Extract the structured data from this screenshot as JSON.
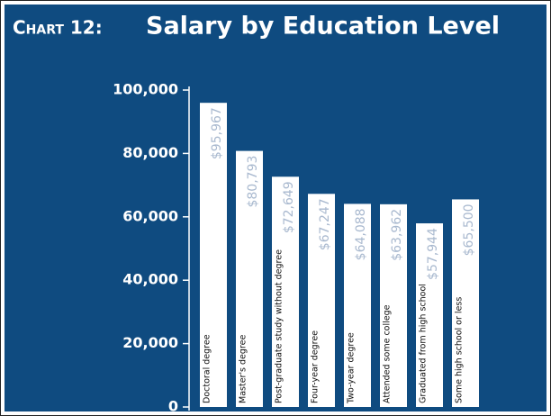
{
  "chart_data": {
    "type": "bar",
    "title_label": "Chart 12:",
    "title": "Salary by Education Level",
    "categories": [
      "Doctoral degree",
      "Master's degree",
      "Post-graduate study without degree",
      "Four-year degree",
      "Two-year degree",
      "Attended some college",
      "Graduated from high school",
      "Some high school or less"
    ],
    "values": [
      95967,
      80793,
      72649,
      67247,
      64088,
      63962,
      57944,
      65500
    ],
    "value_labels": [
      "$95,967",
      "$80,793",
      "$72,649",
      "$67,247",
      "$64,088",
      "$63,962",
      "$57,944",
      "$65,500"
    ],
    "color": "#ffffff",
    "ylim": [
      0,
      100000
    ],
    "yticks": [
      0,
      {
        "value": 20000,
        "label": "20,000"
      },
      {
        "value": 40000,
        "label": "40,000"
      },
      {
        "value": 60000,
        "label": "60,000"
      },
      {
        "value": 80000,
        "label": "80,000"
      },
      {
        "value": 100000,
        "label": "100,000"
      }
    ],
    "grid": false
  }
}
